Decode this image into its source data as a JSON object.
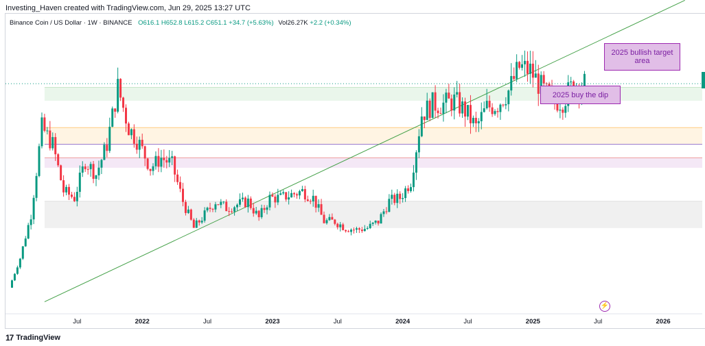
{
  "header": {
    "text": "Investing_Haven created with TradingView.com, Jun 29, 2025 13:27 UTC"
  },
  "legend": {
    "symbol": "Binance Coin / US Dollar · 1W · BINANCE",
    "o": "O616.1",
    "h": "H652.8",
    "l": "L615.2",
    "c": "C651.1",
    "change": "+34.7 (+5.63%)",
    "vol": "Vol26.27K",
    "vol_change": "+2.2 (+0.34%)"
  },
  "annotations": {
    "target": "2025 bullish target area",
    "dip": "2025 buy the dip"
  },
  "footer": {
    "logo": "17",
    "brand": "TradingView"
  },
  "colors": {
    "up": "#089981",
    "down": "#f23645",
    "trend": "#43a047",
    "annot": "#9c27b0"
  },
  "chart_data": {
    "type": "candlestick",
    "x_tick_labels": [
      "Jul",
      "2022",
      "Jul",
      "2023",
      "Jul",
      "2024",
      "Jul",
      "2025",
      "Jul",
      "2026"
    ],
    "x_tick_bold": [
      false,
      true,
      false,
      true,
      false,
      true,
      false,
      true,
      false,
      true
    ],
    "x_ticks": [
      "2021-07",
      "2022-01",
      "2022-07",
      "2023-01",
      "2023-07",
      "2024-01",
      "2024-07",
      "2025-01",
      "2025-07",
      "2026-01"
    ],
    "weekly_close_path": [
      [
        "2021-01",
        42
      ],
      [
        "2021-02",
        130
      ],
      [
        "2021-03",
        260
      ],
      [
        "2021-04",
        520
      ],
      [
        "2021-05",
        470
      ],
      [
        "2021-06",
        330
      ],
      [
        "2021-07",
        310
      ],
      [
        "2021-08",
        420
      ],
      [
        "2021-09",
        380
      ],
      [
        "2021-10",
        470
      ],
      [
        "2021-11",
        640
      ],
      [
        "2021-12",
        520
      ],
      [
        "2022-01",
        470
      ],
      [
        "2022-02",
        400
      ],
      [
        "2022-03",
        430
      ],
      [
        "2022-04",
        410
      ],
      [
        "2022-05",
        300
      ],
      [
        "2022-06",
        220
      ],
      [
        "2022-07",
        260
      ],
      [
        "2022-08",
        300
      ],
      [
        "2022-09",
        280
      ],
      [
        "2022-10",
        290
      ],
      [
        "2022-11",
        300
      ],
      [
        "2022-12",
        250
      ],
      [
        "2023-01",
        310
      ],
      [
        "2023-02",
        310
      ],
      [
        "2023-03",
        320
      ],
      [
        "2023-04",
        330
      ],
      [
        "2023-05",
        310
      ],
      [
        "2023-06",
        240
      ],
      [
        "2023-07",
        240
      ],
      [
        "2023-08",
        220
      ],
      [
        "2023-09",
        215
      ],
      [
        "2023-10",
        220
      ],
      [
        "2023-11",
        240
      ],
      [
        "2023-12",
        300
      ],
      [
        "2024-01",
        310
      ],
      [
        "2024-02",
        360
      ],
      [
        "2024-03",
        560
      ],
      [
        "2024-04",
        590
      ],
      [
        "2024-05",
        590
      ],
      [
        "2024-06",
        600
      ],
      [
        "2024-07",
        570
      ],
      [
        "2024-08",
        520
      ],
      [
        "2024-09",
        580
      ],
      [
        "2024-10",
        590
      ],
      [
        "2024-11",
        630
      ],
      [
        "2024-12",
        700
      ],
      [
        "2025-01",
        690
      ],
      [
        "2025-02",
        640
      ],
      [
        "2025-03",
        600
      ],
      [
        "2025-04",
        600
      ],
      [
        "2025-05",
        650
      ],
      [
        "2025-06",
        651
      ]
    ],
    "horizontal_bands": [
      {
        "from": 600,
        "to": 640
      },
      {
        "from": 470,
        "to": 520
      },
      {
        "from": 400,
        "to": 430
      },
      {
        "from": 220,
        "to": 300
      }
    ],
    "trendline": {
      "from": [
        "2021-04",
        0
      ],
      "to": [
        "2026-03",
        900
      ]
    },
    "last_price": 651.1
  }
}
